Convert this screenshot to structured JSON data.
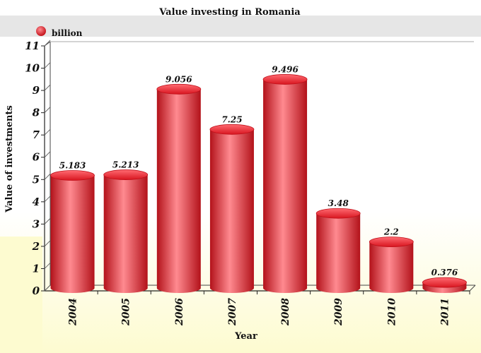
{
  "chart_data": {
    "type": "bar",
    "title": "Value investing in Romania",
    "categories": [
      "2004",
      "2005",
      "2006",
      "2007",
      "2008",
      "2009",
      "2010",
      "2011"
    ],
    "series": [
      {
        "name": "billion",
        "values": [
          5.183,
          5.213,
          9.056,
          7.25,
          9.496,
          3.48,
          2.2,
          0.376
        ],
        "value_labels": [
          "5.183",
          "5.213",
          "9.056",
          "7.25",
          "9.496",
          "3.48",
          "2.2",
          "0.376"
        ]
      }
    ],
    "xlabel": "Year",
    "ylabel": "Value of investments",
    "ylim": [
      0,
      11
    ],
    "yticks": [
      "0",
      "1",
      "2",
      "3",
      "4",
      "5",
      "6",
      "7",
      "8",
      "9",
      "10",
      "11"
    ],
    "grid": false,
    "legend_position": "top-left",
    "bar_style": "3d-cylinder",
    "colors": {
      "bar": "#e8262e",
      "bar_dark": "#b3121a",
      "bar_light": "#ff8a90",
      "legend_band": "#e6e6e6",
      "background_tint": "#fdfbd0"
    }
  }
}
